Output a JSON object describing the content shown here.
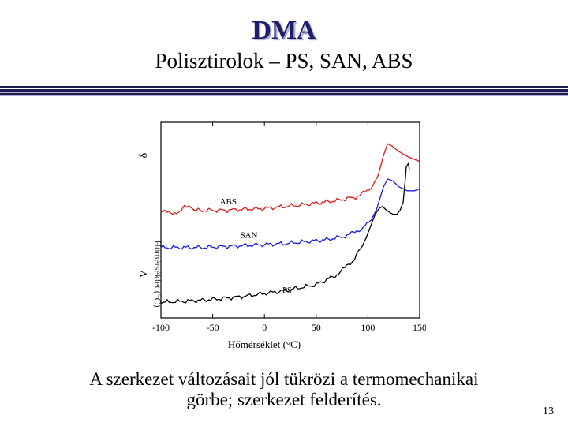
{
  "slide": {
    "title": "DMA",
    "subtitle": "Polisztirolok – PS, SAN, ABS",
    "caption_line1": "A szerkezet változásait jól tükrözi a termomechanikai",
    "caption_line2": "görbe; szerkezet felderítés.",
    "page_number": "13"
  },
  "colors": {
    "title": "#1e1e6e",
    "rule_dark": "#1e1e4e",
    "rule_light": "#b0b0d8",
    "ps": "#000000",
    "san": "#1a1ad8",
    "abs": "#d81a1a"
  },
  "chart_data": {
    "type": "line",
    "title": "",
    "xlabel": "Hőmérséklet (°C)",
    "ylabel_upper": "δ",
    "ylabel_lower": "V",
    "ylabel_lower_rotated": "Hőmérséklet (°C)",
    "xlim": [
      -100,
      150
    ],
    "x_ticks": [
      -100,
      -50,
      0,
      50,
      100,
      150
    ],
    "x_tick_labels": [
      "-100",
      "-50",
      "0",
      "50",
      "100",
      "150"
    ],
    "y_scale": "arbitrary units, no tick labels",
    "ylim": [
      0,
      100
    ],
    "grid": false,
    "legend": "none (curves labelled directly)",
    "series": [
      {
        "name": "PS",
        "color": "#000000",
        "label_at": [
          22,
          13
        ],
        "points": [
          [
            -100,
            8
          ],
          [
            -60,
            9
          ],
          [
            -20,
            11
          ],
          [
            20,
            14
          ],
          [
            50,
            17
          ],
          [
            70,
            22
          ],
          [
            85,
            29
          ],
          [
            95,
            37
          ],
          [
            102,
            46
          ],
          [
            107,
            53
          ],
          [
            111,
            56
          ],
          [
            114,
            57
          ],
          [
            118,
            55
          ],
          [
            124,
            53
          ],
          [
            128,
            53
          ],
          [
            131,
            55
          ],
          [
            134,
            59
          ],
          [
            136,
            70
          ],
          [
            137,
            77
          ],
          [
            139,
            79
          ],
          [
            140,
            76
          ]
        ]
      },
      {
        "name": "SAN",
        "color": "#1a1ad8",
        "label_at": [
          -15,
          41
        ],
        "points": [
          [
            -100,
            36
          ],
          [
            -60,
            36
          ],
          [
            -20,
            37
          ],
          [
            20,
            38
          ],
          [
            60,
            40
          ],
          [
            80,
            42
          ],
          [
            95,
            46
          ],
          [
            103,
            50
          ],
          [
            108,
            55
          ],
          [
            111,
            60
          ],
          [
            115,
            67
          ],
          [
            119,
            71
          ],
          [
            124,
            70
          ],
          [
            130,
            67
          ],
          [
            138,
            65
          ],
          [
            145,
            65
          ],
          [
            150,
            66
          ]
        ]
      },
      {
        "name": "ABS",
        "color": "#d81a1a",
        "label_at": [
          -35,
          58
        ],
        "points": [
          [
            -100,
            54
          ],
          [
            -85,
            54
          ],
          [
            -80,
            56
          ],
          [
            -77,
            58
          ],
          [
            -73,
            57
          ],
          [
            -68,
            55
          ],
          [
            -40,
            55
          ],
          [
            0,
            56
          ],
          [
            40,
            58
          ],
          [
            70,
            60
          ],
          [
            90,
            62
          ],
          [
            103,
            66
          ],
          [
            110,
            73
          ],
          [
            115,
            83
          ],
          [
            119,
            89
          ],
          [
            123,
            88
          ],
          [
            130,
            85
          ],
          [
            140,
            82
          ],
          [
            150,
            80
          ]
        ]
      }
    ]
  }
}
